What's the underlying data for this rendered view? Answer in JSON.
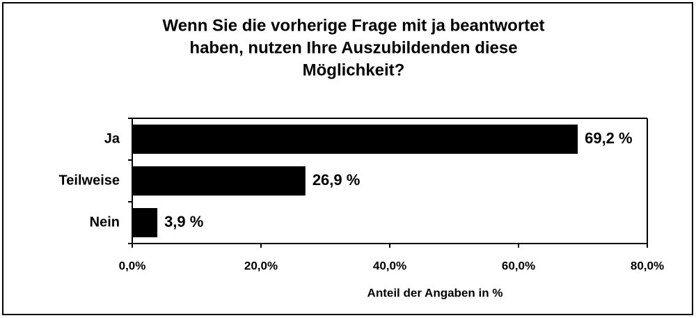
{
  "chart_data": {
    "type": "bar",
    "orientation": "horizontal",
    "title": [
      "Wenn Sie die vorherige Frage mit ja beantwortet",
      "haben, nutzen Ihre Auszubildenden diese",
      "Möglichkeit?"
    ],
    "categories": [
      "Ja",
      "Teilweise",
      "Nein"
    ],
    "values": [
      69.2,
      26.9,
      3.9
    ],
    "value_labels": [
      "69,2 %",
      "26,9 %",
      "3,9 %"
    ],
    "color": "#000000",
    "xlim": [
      0,
      80
    ],
    "xticks": [
      {
        "value": 0,
        "label": "0,0%"
      },
      {
        "value": 20,
        "label": "20,0%"
      },
      {
        "value": 40,
        "label": "40,0%"
      },
      {
        "value": 60,
        "label": "60,0%"
      },
      {
        "value": 80,
        "label": "80,0%"
      }
    ],
    "xlabel": "Anteil der Angaben in %",
    "grid": false
  }
}
